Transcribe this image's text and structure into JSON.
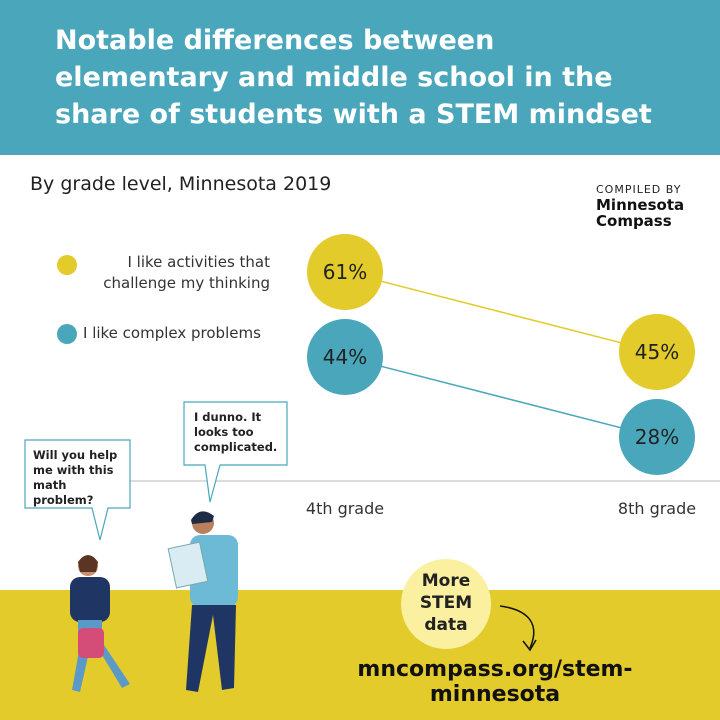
{
  "chart_data": {
    "type": "slope",
    "title": "Notable differences between elementary and middle school in the share of students with a STEM mindset",
    "subtitle": "By grade level, Minnesota 2019",
    "categories": [
      "4th grade",
      "8th grade"
    ],
    "series": [
      {
        "name": "I like activities that challenge my thinking",
        "color": "#e3cb2b",
        "values": [
          61,
          45
        ],
        "value_labels": [
          "61%",
          "45%"
        ]
      },
      {
        "name": "I like complex problems",
        "color": "#4aa7bb",
        "values": [
          44,
          28
        ],
        "value_labels": [
          "44%",
          "28%"
        ]
      }
    ]
  },
  "credit": {
    "label": "COMPILED BY",
    "name": "Minnesota Compass"
  },
  "bubbles": [
    "Will you help me with this math problem?",
    "I dunno. It looks too complicated."
  ],
  "cta": "More STEM data",
  "url": "mncompass.org/stem-minnesota"
}
